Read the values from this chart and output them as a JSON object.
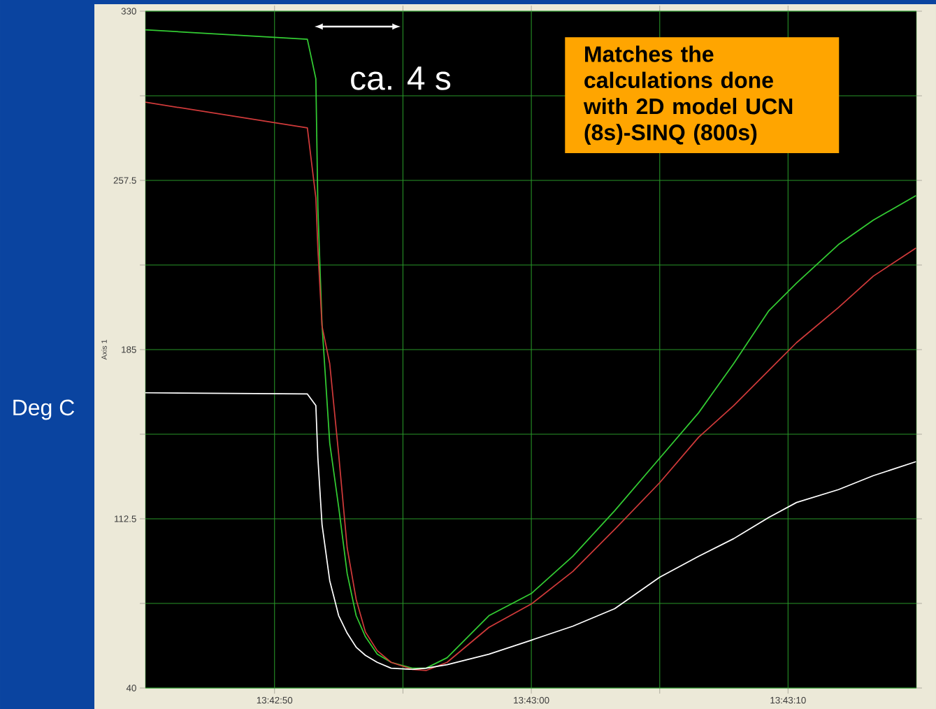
{
  "chart_data": {
    "type": "line",
    "ylabel": "Axis 1",
    "annotations": [
      "Deg C",
      "ca. 4 s",
      "Matches the calculations done with 2D model UCN (8s)-SINQ (800s)"
    ],
    "x": [
      13.712492,
      13.714244,
      13.714336,
      13.714358,
      13.714403,
      13.714486,
      13.714583,
      13.714675,
      13.714772,
      13.714872,
      13.715,
      13.71515,
      13.715378,
      13.715528,
      13.715756,
      13.716208,
      13.716667,
      13.717117,
      13.717569,
      13.718056,
      13.718478,
      13.718856,
      13.719233,
      13.719536,
      13.719989,
      13.720367,
      13.720828
    ],
    "series": [
      {
        "color": "#33cc33",
        "values": [
          322,
          318,
          301,
          245.5,
          195.5,
          145,
          117.5,
          89,
          71,
          62,
          54.5,
          51,
          48.5,
          48.5,
          53,
          71,
          80.5,
          96.5,
          116,
          138.5,
          158,
          179,
          201.5,
          213.5,
          230,
          240.5,
          251
        ]
      },
      {
        "color": "#d03a3a",
        "values": [
          291,
          280,
          250,
          228,
          195,
          179,
          140,
          100,
          78,
          64,
          56,
          51,
          48,
          47.5,
          51,
          66,
          76,
          90,
          108,
          128,
          147.5,
          161,
          176,
          188,
          203,
          216.5,
          228.5
        ]
      },
      {
        "color": "#ffffff",
        "values": [
          166.5,
          166,
          161,
          138.5,
          110,
          86,
          71,
          63.5,
          57.5,
          54,
          51,
          48.5,
          48,
          48.5,
          50,
          54.5,
          60.5,
          66.5,
          74,
          87.5,
          96.5,
          104,
          113,
          119.5,
          125,
          131,
          137
        ]
      }
    ],
    "xlim": [
      13.712492,
      13.720833
    ],
    "ylim": [
      40,
      330
    ],
    "xticks": [
      {
        "value": 13.713889,
        "label": "13:42:50"
      },
      {
        "value": 13.715278,
        "label": null
      },
      {
        "value": 13.716667,
        "label": "13:43:00"
      },
      {
        "value": 13.718056,
        "label": null
      },
      {
        "value": 13.719444,
        "label": "13:43:10"
      }
    ],
    "yticks": [
      40,
      {
        "value": 76.25,
        "label": null
      },
      112.5,
      {
        "value": 148.75,
        "label": null
      },
      185,
      {
        "value": 221.25,
        "label": null
      },
      257.5,
      {
        "value": 293.75,
        "label": null
      },
      330
    ],
    "grid": true
  }
}
